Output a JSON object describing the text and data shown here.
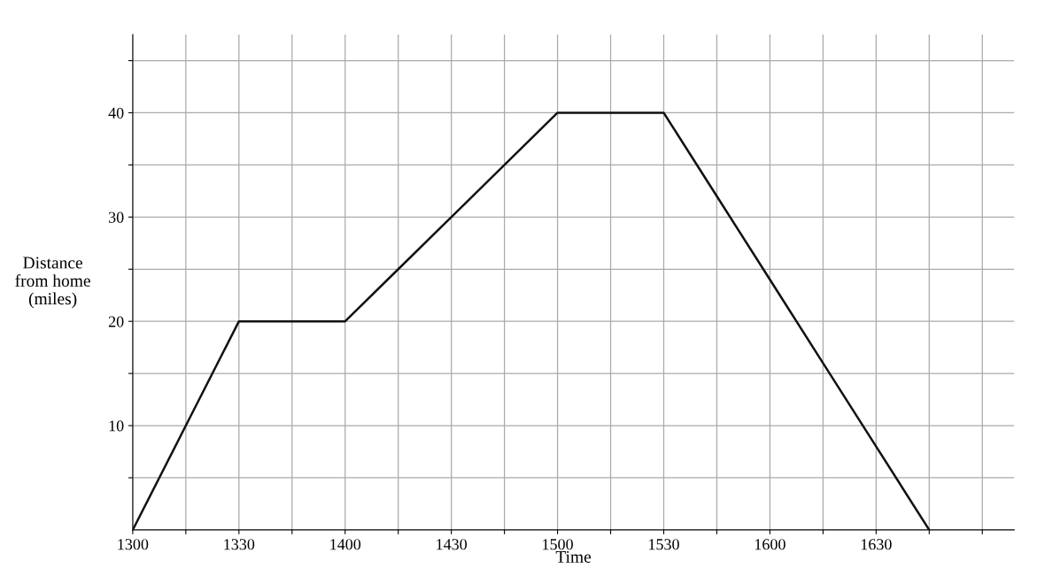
{
  "chart_data": {
    "type": "line",
    "xlabel": "Time",
    "ylabel": "Distance\nfrom home\n(miles)",
    "categories": [
      "1300",
      null,
      "1330",
      null,
      "1400",
      null,
      "1430",
      null,
      "1500",
      null,
      "1530",
      null,
      "1600",
      null,
      "1630",
      null,
      null
    ],
    "series": [
      {
        "color": "#111111",
        "values": [
          0,
          10,
          20,
          20,
          20,
          25,
          30,
          35,
          40,
          40,
          40,
          32,
          24,
          16,
          8,
          0,
          null
        ]
      }
    ],
    "ylim": [
      0,
      47.5
    ],
    "yticks": [
      {
        "value": 5,
        "label": null
      },
      10,
      {
        "value": 15,
        "label": null
      },
      20,
      {
        "value": 25,
        "label": null
      },
      30,
      {
        "value": 35,
        "label": null
      },
      40,
      {
        "value": 45,
        "label": null
      }
    ],
    "grid": true,
    "marker": "none",
    "line_style": "solid",
    "legend": false
  }
}
